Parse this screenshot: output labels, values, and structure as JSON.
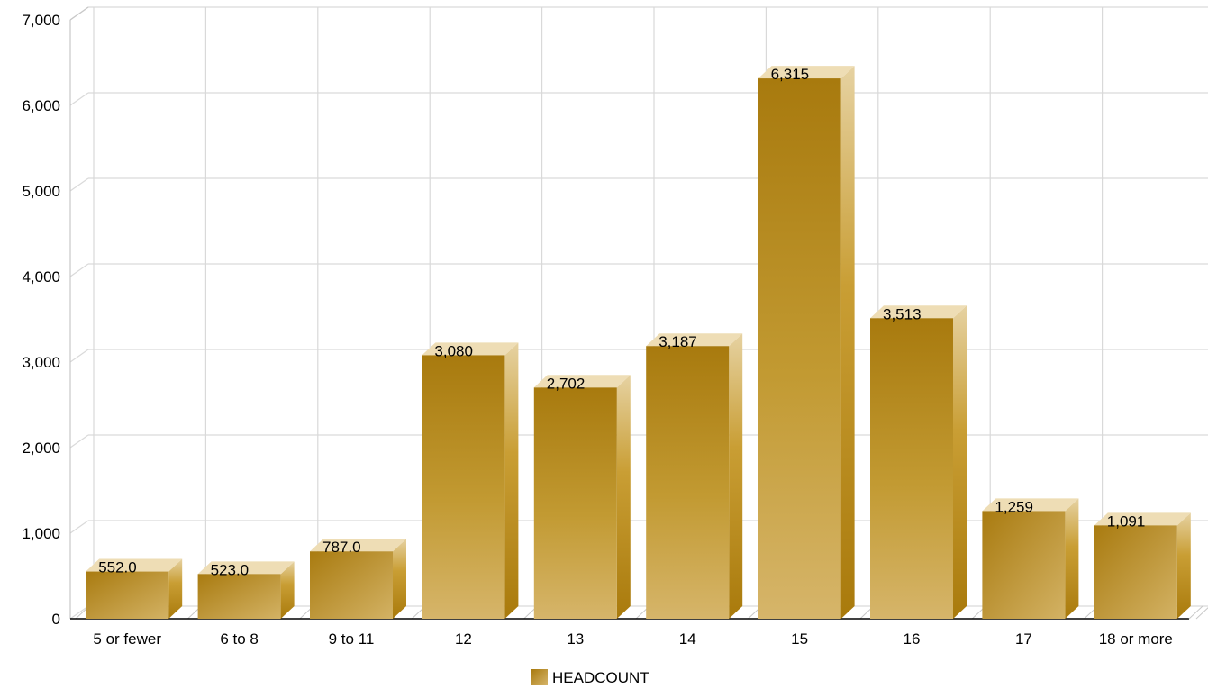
{
  "chart_data": {
    "type": "bar",
    "categories": [
      "5 or fewer",
      "6 to 8",
      "9 to 11",
      "12",
      "13",
      "14",
      "15",
      "16",
      "17",
      "18 or more"
    ],
    "series": [
      {
        "name": "HEADCOUNT",
        "values": [
          552,
          523,
          787,
          3080,
          2702,
          3187,
          6315,
          3513,
          1259,
          1091
        ],
        "labels": [
          "552.0",
          "523.0",
          "787.0",
          "3,080",
          "2,702",
          "3,187",
          "6,315",
          "3,513",
          "1,259",
          "1,091"
        ]
      }
    ],
    "yticks": [
      "0",
      "1,000",
      "2,000",
      "3,000",
      "4,000",
      "5,000",
      "6,000",
      "7,000"
    ],
    "ylim": [
      0,
      7000
    ],
    "grid": true,
    "legend_position": "bottom-center",
    "colors": {
      "bar_front_dark": "#A87A0E",
      "bar_front_light": "#D2B060",
      "bar_side": "#B98914",
      "bar_top": "#EEDDB5",
      "grid": "#D9D9D9",
      "axis": "#000000"
    },
    "title": "",
    "xlabel": "",
    "ylabel": ""
  }
}
